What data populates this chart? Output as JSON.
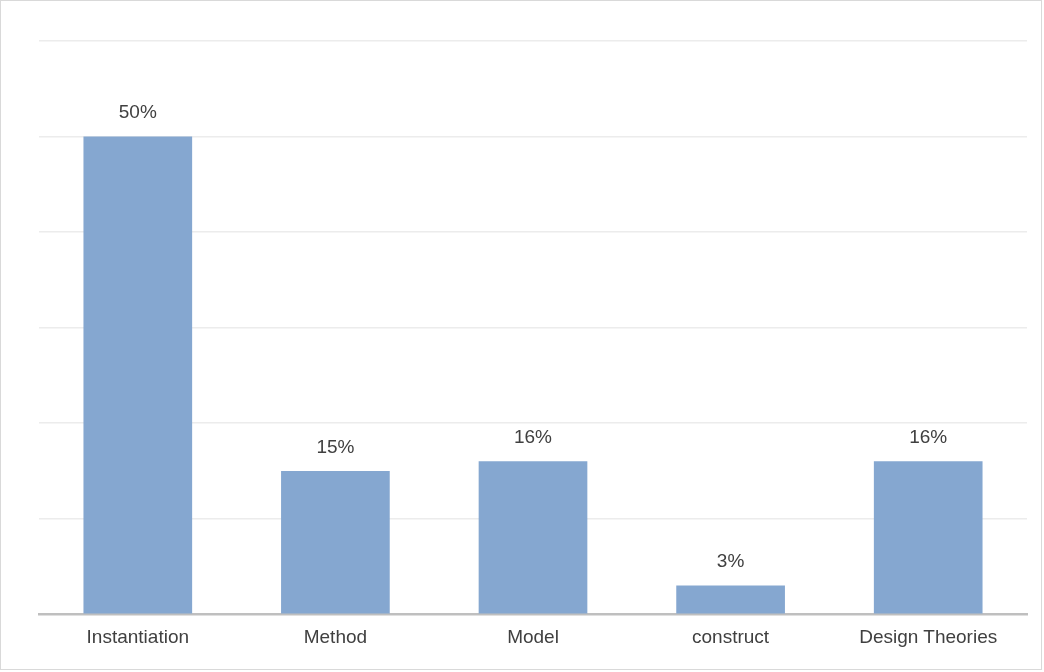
{
  "chart_data": {
    "type": "bar",
    "categories": [
      "Instantiation",
      "Method",
      "Model",
      "construct",
      "Design Theories"
    ],
    "values": [
      50,
      15,
      16,
      3,
      16
    ],
    "color": "#85a7d0",
    "value_labels": [
      "50%",
      "15%",
      "16%",
      "3%",
      "16%"
    ],
    "ylim": [
      0,
      60
    ],
    "yticks": [
      {
        "value": 0,
        "label": null
      },
      {
        "value": 10,
        "label": null
      },
      {
        "value": 20,
        "label": null
      },
      {
        "value": 30,
        "label": null
      },
      {
        "value": 40,
        "label": null
      },
      {
        "value": 50,
        "label": null
      },
      {
        "value": 60,
        "label": null
      }
    ],
    "grid": "y",
    "tick_labels": "x",
    "legend": false
  }
}
